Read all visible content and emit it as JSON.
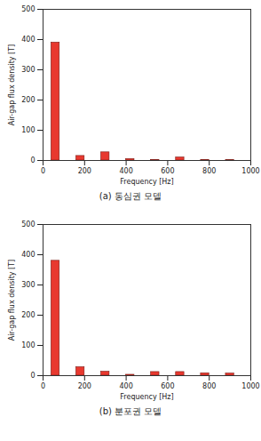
{
  "chart_data": [
    {
      "type": "bar",
      "title": "(a) 동심권 모델",
      "x": [
        60,
        180,
        300,
        420,
        540,
        660,
        780,
        900
      ],
      "values": [
        390,
        15,
        27,
        5,
        2,
        10,
        2,
        1
      ],
      "color": "#e8392f",
      "xlabel": "Frequency [Hz]",
      "ylabel": "Air-gap flux density [T]",
      "xlim": [
        0,
        1000
      ],
      "xticks": [
        0,
        200,
        400,
        600,
        800,
        1000
      ],
      "ylim": [
        0,
        500
      ],
      "yticks": [
        0,
        100,
        200,
        300,
        400,
        500
      ],
      "grid": false
    },
    {
      "type": "bar",
      "title": "(b) 분포권 모델",
      "x": [
        60,
        180,
        300,
        420,
        540,
        660,
        780,
        900
      ],
      "values": [
        380,
        28,
        13,
        3,
        12,
        12,
        8,
        7
      ],
      "color": "#e8392f",
      "xlabel": "Frequency [Hz]",
      "ylabel": "Air-gap flux density [T]",
      "xlim": [
        0,
        1000
      ],
      "xticks": [
        0,
        200,
        400,
        600,
        800,
        1000
      ],
      "ylim": [
        0,
        500
      ],
      "yticks": [
        0,
        100,
        200,
        300,
        400,
        500
      ],
      "grid": false
    }
  ]
}
